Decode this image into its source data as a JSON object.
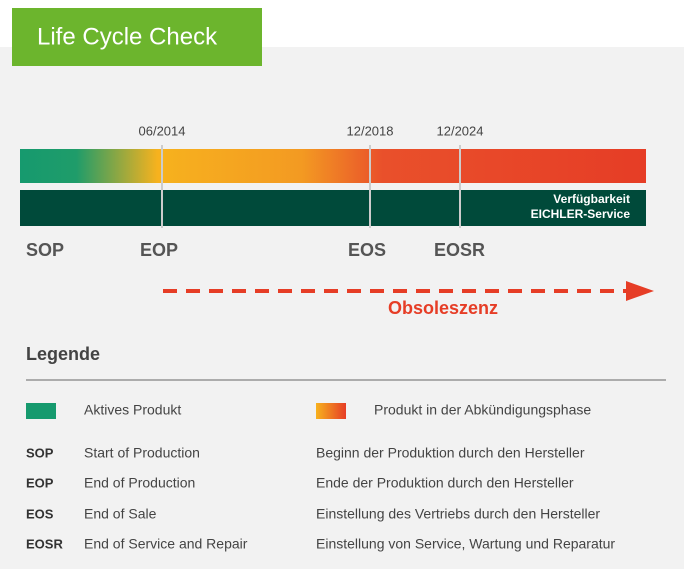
{
  "header": {
    "title": "Life Cycle Check"
  },
  "timeline": {
    "dates": [
      "06/2014",
      "12/2018",
      "12/2024"
    ],
    "bar_label": [
      "Verfügbarkeit",
      "EICHLER-Service"
    ],
    "milestones": [
      "SOP",
      "EOP",
      "EOS",
      "EOSR"
    ],
    "arrow_label": "Obsoleszenz"
  },
  "legend": {
    "title": "Legende",
    "swatches": [
      {
        "label": "Aktives Produkt"
      },
      {
        "label": "Produkt in der Abkündigungsphase"
      }
    ],
    "rows": [
      {
        "abbr": "SOP",
        "term": "Start of Production",
        "description": "Beginn der Produktion durch den Hersteller"
      },
      {
        "abbr": "EOP",
        "term": "End of Production",
        "description": "Ende der Produktion durch den Hersteller"
      },
      {
        "abbr": "EOS",
        "term": "End of Sale",
        "description": "Einstellung des Vertriebs durch den Hersteller"
      },
      {
        "abbr": "EOSR",
        "term": "End of Service and Repair",
        "description": "Einstellung von Service, Wartung und Reparatur"
      }
    ]
  }
}
